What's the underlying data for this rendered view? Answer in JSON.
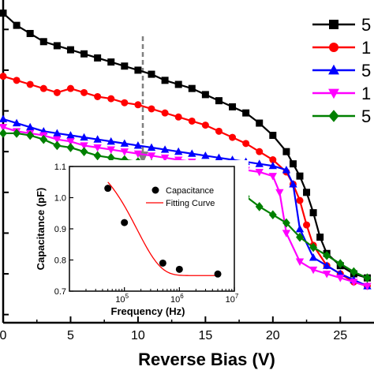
{
  "chart_data": [
    {
      "type": "line",
      "xlabel": "Reverse Bias (V)",
      "ylabel": "",
      "xlim": [
        0,
        27.5
      ],
      "ylim": [
        0.38,
        1.18
      ],
      "x_ticks": [
        0,
        5,
        10,
        15,
        20,
        25
      ],
      "grid": false,
      "legend_position": "top-right",
      "series": [
        {
          "name": "5",
          "color": "#000000",
          "marker": "square",
          "x": [
            0,
            1,
            2,
            3,
            4,
            5,
            6,
            7,
            8,
            9,
            10,
            11,
            12,
            13,
            14,
            15,
            16,
            17,
            18,
            19,
            20,
            21,
            21.5,
            22,
            22.5,
            23,
            23.5,
            24,
            25,
            26,
            27
          ],
          "y": [
            1.14,
            1.11,
            1.09,
            1.07,
            1.06,
            1.05,
            1.04,
            1.03,
            1.02,
            1.01,
            1.0,
            0.99,
            0.975,
            0.965,
            0.955,
            0.94,
            0.925,
            0.91,
            0.895,
            0.87,
            0.84,
            0.8,
            0.77,
            0.74,
            0.7,
            0.65,
            0.59,
            0.55,
            0.52,
            0.5,
            0.49
          ]
        },
        {
          "name": "1",
          "color": "#ff0000",
          "marker": "circle",
          "x": [
            0,
            1,
            2,
            3,
            4,
            5,
            6,
            7,
            8,
            9,
            10,
            11,
            12,
            13,
            14,
            15,
            16,
            17,
            18,
            19,
            20,
            21,
            21.5,
            22,
            22.5,
            23,
            24,
            25,
            26,
            27
          ],
          "y": [
            0.985,
            0.975,
            0.965,
            0.955,
            0.945,
            0.955,
            0.945,
            0.935,
            0.93,
            0.92,
            0.915,
            0.905,
            0.895,
            0.885,
            0.875,
            0.865,
            0.85,
            0.835,
            0.82,
            0.8,
            0.78,
            0.75,
            0.72,
            0.68,
            0.62,
            0.57,
            0.52,
            0.5,
            0.48,
            0.47
          ]
        },
        {
          "name": "5",
          "color": "#0000ff",
          "marker": "triangle-up",
          "x": [
            0,
            1,
            2,
            3,
            4,
            5,
            6,
            7,
            8,
            9,
            10,
            11,
            12,
            13,
            14,
            15,
            16,
            17,
            18,
            19,
            20,
            21,
            21.5,
            22,
            23,
            24,
            25,
            26,
            27
          ],
          "y": [
            0.88,
            0.87,
            0.86,
            0.85,
            0.845,
            0.84,
            0.835,
            0.83,
            0.825,
            0.82,
            0.815,
            0.81,
            0.805,
            0.8,
            0.795,
            0.79,
            0.785,
            0.78,
            0.775,
            0.77,
            0.765,
            0.755,
            0.72,
            0.61,
            0.54,
            0.52,
            0.5,
            0.485,
            0.47
          ]
        },
        {
          "name": "1",
          "color": "#ff00ff",
          "marker": "triangle-down",
          "x": [
            0,
            1,
            2,
            3,
            4,
            5,
            6,
            7,
            8,
            9,
            10,
            11,
            12,
            13,
            14,
            15,
            16,
            17,
            18,
            19,
            20,
            20.5,
            21,
            22,
            23,
            24,
            25,
            26,
            27
          ],
          "y": [
            0.86,
            0.85,
            0.845,
            0.84,
            0.83,
            0.825,
            0.815,
            0.81,
            0.805,
            0.8,
            0.795,
            0.79,
            0.785,
            0.78,
            0.775,
            0.77,
            0.765,
            0.76,
            0.755,
            0.75,
            0.74,
            0.7,
            0.6,
            0.53,
            0.51,
            0.5,
            0.49,
            0.48,
            0.47
          ]
        },
        {
          "name": "5",
          "color": "#008000",
          "marker": "diamond",
          "x": [
            0,
            1,
            2,
            3,
            4,
            5,
            6,
            7,
            8,
            9,
            10,
            11,
            12,
            13,
            14,
            15,
            16,
            17,
            18,
            19,
            20,
            21,
            22,
            23,
            24,
            25,
            26,
            27
          ],
          "y": [
            0.845,
            0.845,
            0.84,
            0.83,
            0.815,
            0.81,
            0.8,
            0.79,
            0.785,
            0.78,
            0.775,
            0.77,
            0.765,
            0.755,
            0.745,
            0.735,
            0.725,
            0.71,
            0.69,
            0.665,
            0.645,
            0.625,
            0.59,
            0.565,
            0.545,
            0.525,
            0.505,
            0.49
          ]
        }
      ]
    },
    {
      "type": "scatter",
      "xlabel": "Frequency (Hz)",
      "ylabel": "Capacitance (pF)",
      "x_scale": "log",
      "xlim": [
        10000,
        10000000
      ],
      "ylim": [
        0.7,
        1.1
      ],
      "y_ticks": [
        "0.7",
        "0.8",
        "0.9",
        "1.0",
        "1.1"
      ],
      "x_ticks": [
        "10^5",
        "10^6",
        "10^7"
      ],
      "legend_position": "top-right",
      "series": [
        {
          "name": "Capacitance",
          "color": "#000000",
          "marker": "circle",
          "x": [
            50000,
            100000,
            500000,
            1000000,
            5000000
          ],
          "y": [
            1.03,
            0.92,
            0.79,
            0.77,
            0.755
          ]
        },
        {
          "name": "Fitting Curve",
          "color": "#ff0000",
          "type": "line",
          "model": "y = 0.75 + 0.30 * exp(-(x - 50000) / 170000)",
          "x_range": [
            50000,
            5000000
          ]
        }
      ]
    }
  ]
}
